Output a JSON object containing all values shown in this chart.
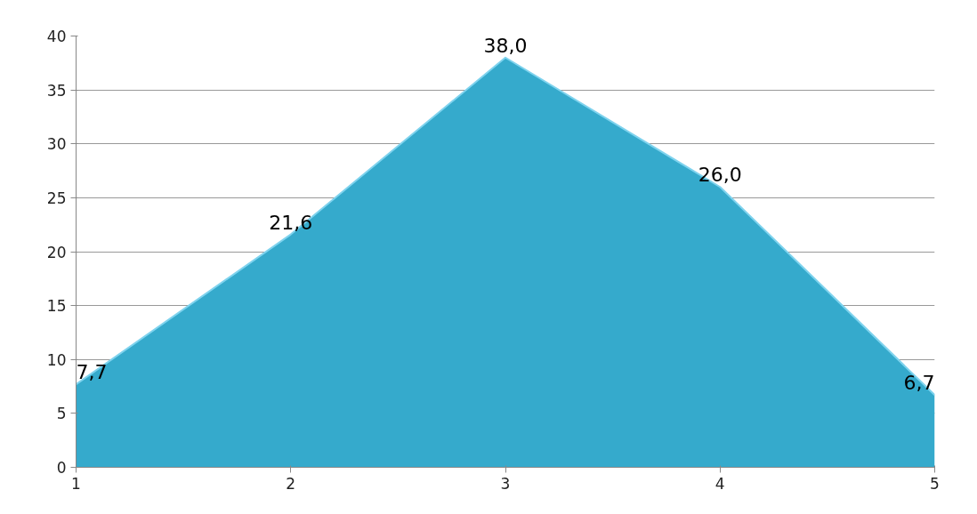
{
  "chart_data": {
    "type": "area",
    "x": [
      1,
      2,
      3,
      4,
      5
    ],
    "values": [
      7.7,
      21.6,
      38.0,
      26.0,
      6.7
    ],
    "value_labels": [
      "7,7",
      "21,6",
      "38,0",
      "26,0",
      "6,7"
    ],
    "color": "#35aacc",
    "xlim": [
      1,
      5
    ],
    "xticks": [
      1,
      2,
      3,
      4,
      5
    ],
    "ylim": [
      0,
      40
    ],
    "yticks": [
      0,
      5,
      10,
      15,
      20,
      25,
      30,
      35,
      40
    ],
    "grid": "y"
  }
}
